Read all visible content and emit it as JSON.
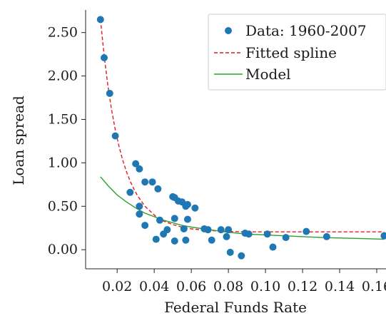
{
  "chart_data": {
    "type": "scatter",
    "xlabel": "Federal Funds Rate",
    "ylabel": "Loan spread",
    "xlim": [
      0.003,
      0.165
    ],
    "ylim": [
      -0.22,
      2.76
    ],
    "x_ticks": [
      0.02,
      0.04,
      0.06,
      0.08,
      0.1,
      0.12,
      0.14,
      0.16
    ],
    "x_tick_labels": [
      "0.02",
      "0.04",
      "0.06",
      "0.08",
      "0.10",
      "0.12",
      "0.14",
      "0.16"
    ],
    "y_ticks": [
      0.0,
      0.5,
      1.0,
      1.5,
      2.0,
      2.5
    ],
    "y_tick_labels": [
      "0.00",
      "0.50",
      "1.00",
      "1.50",
      "2.00",
      "2.50"
    ],
    "grid": false,
    "legend_position": "top-right",
    "series": [
      {
        "name": "Data: 1960-2007",
        "kind": "scatter",
        "color": "#1f77b4",
        "points": [
          [
            0.011,
            2.65
          ],
          [
            0.013,
            2.21
          ],
          [
            0.016,
            1.8
          ],
          [
            0.019,
            1.31
          ],
          [
            0.027,
            0.66
          ],
          [
            0.03,
            0.99
          ],
          [
            0.032,
            0.93
          ],
          [
            0.032,
            0.5
          ],
          [
            0.032,
            0.41
          ],
          [
            0.035,
            0.78
          ],
          [
            0.035,
            0.28
          ],
          [
            0.039,
            0.78
          ],
          [
            0.041,
            0.12
          ],
          [
            0.042,
            0.7
          ],
          [
            0.043,
            0.34
          ],
          [
            0.045,
            0.18
          ],
          [
            0.047,
            0.23
          ],
          [
            0.05,
            0.61
          ],
          [
            0.051,
            0.6
          ],
          [
            0.051,
            0.36
          ],
          [
            0.051,
            0.1
          ],
          [
            0.053,
            0.56
          ],
          [
            0.055,
            0.55
          ],
          [
            0.056,
            0.24
          ],
          [
            0.057,
            0.11
          ],
          [
            0.057,
            0.5
          ],
          [
            0.058,
            0.52
          ],
          [
            0.058,
            0.35
          ],
          [
            0.062,
            0.48
          ],
          [
            0.067,
            0.24
          ],
          [
            0.069,
            0.23
          ],
          [
            0.071,
            0.11
          ],
          [
            0.076,
            0.23
          ],
          [
            0.079,
            0.15
          ],
          [
            0.08,
            0.23
          ],
          [
            0.081,
            -0.03
          ],
          [
            0.087,
            -0.07
          ],
          [
            0.089,
            0.19
          ],
          [
            0.091,
            0.18
          ],
          [
            0.101,
            0.18
          ],
          [
            0.104,
            0.03
          ],
          [
            0.111,
            0.14
          ],
          [
            0.122,
            0.21
          ],
          [
            0.133,
            0.15
          ],
          [
            0.164,
            0.16
          ]
        ]
      },
      {
        "name": "Fitted spline",
        "kind": "line",
        "style": "dashed",
        "color": "#e31a1c",
        "points": [
          [
            0.011,
            2.65
          ],
          [
            0.013,
            2.23
          ],
          [
            0.015,
            1.89
          ],
          [
            0.017,
            1.61
          ],
          [
            0.019,
            1.38
          ],
          [
            0.021,
            1.19
          ],
          [
            0.023,
            1.03
          ],
          [
            0.025,
            0.9
          ],
          [
            0.027,
            0.79
          ],
          [
            0.029,
            0.7
          ],
          [
            0.031,
            0.62
          ],
          [
            0.033,
            0.56
          ],
          [
            0.035,
            0.5
          ],
          [
            0.037,
            0.46
          ],
          [
            0.039,
            0.42
          ],
          [
            0.041,
            0.38
          ],
          [
            0.045,
            0.33
          ],
          [
            0.05,
            0.29
          ],
          [
            0.055,
            0.26
          ],
          [
            0.06,
            0.24
          ],
          [
            0.07,
            0.22
          ],
          [
            0.08,
            0.21
          ],
          [
            0.09,
            0.205
          ],
          [
            0.1,
            0.205
          ],
          [
            0.12,
            0.205
          ],
          [
            0.14,
            0.205
          ],
          [
            0.164,
            0.205
          ]
        ]
      },
      {
        "name": "Model",
        "kind": "line",
        "style": "solid",
        "color": "#2ca02c",
        "points": [
          [
            0.011,
            0.84
          ],
          [
            0.015,
            0.74
          ],
          [
            0.02,
            0.63
          ],
          [
            0.025,
            0.55
          ],
          [
            0.03,
            0.48
          ],
          [
            0.035,
            0.42
          ],
          [
            0.04,
            0.38
          ],
          [
            0.045,
            0.34
          ],
          [
            0.05,
            0.31
          ],
          [
            0.055,
            0.28
          ],
          [
            0.06,
            0.26
          ],
          [
            0.07,
            0.23
          ],
          [
            0.08,
            0.2
          ],
          [
            0.09,
            0.18
          ],
          [
            0.1,
            0.17
          ],
          [
            0.11,
            0.16
          ],
          [
            0.12,
            0.15
          ],
          [
            0.13,
            0.14
          ],
          [
            0.14,
            0.135
          ],
          [
            0.15,
            0.13
          ],
          [
            0.164,
            0.12
          ]
        ]
      }
    ]
  }
}
